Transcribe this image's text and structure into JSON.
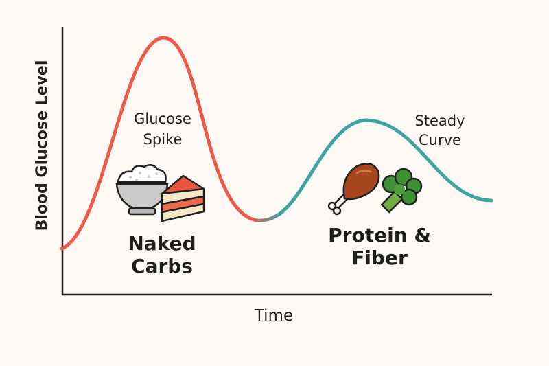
{
  "axes": {
    "y_label": "Blood Glucose Level",
    "x_label": "Time"
  },
  "annotations": {
    "spike_line1": "Glucose",
    "spike_line2": "Spike",
    "steady_line1": "Steady",
    "steady_line2": "Curve",
    "carbs_line1": "Naked",
    "carbs_line2": "Carbs",
    "protein_line1": "Protein &",
    "protein_line2": "Fiber"
  },
  "colors": {
    "spike_curve": "#ec5a48",
    "steady_curve": "#3fa3a2",
    "axis": "#1f1f1f",
    "background": "#fcf9f4"
  },
  "icons": [
    "rice-bowl-icon",
    "cake-slice-icon",
    "chicken-drumstick-icon",
    "broccoli-icon"
  ]
}
